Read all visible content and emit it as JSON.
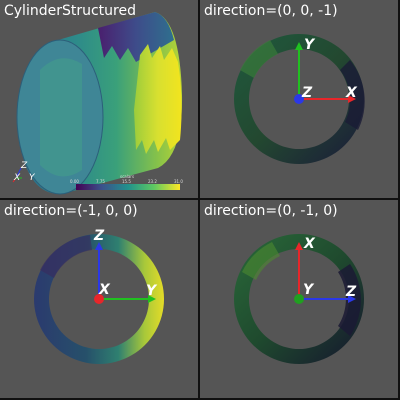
{
  "panes": [
    {
      "title": "CylinderStructured"
    },
    {
      "title": "direction=(0, 0, -1)",
      "axes": {
        "up": "Y",
        "right": "X",
        "center": "Z"
      }
    },
    {
      "title": "direction=(-1, 0, 0)",
      "axes": {
        "up": "Z",
        "right": "Y",
        "center": "X"
      }
    },
    {
      "title": "direction=(0, -1, 0)",
      "axes": {
        "up": "X",
        "right": "Z",
        "center": "Y"
      }
    }
  ],
  "orientation_widget": {
    "z": "Z",
    "x": "X",
    "y": "Y"
  },
  "scalar_bar": {
    "title": "scalars",
    "ticks": [
      "0.00",
      "7.75",
      "15.5",
      "23.2",
      "31.0"
    ]
  },
  "colors": {
    "background": "#555555",
    "axis_x": "#e8262a",
    "axis_y": "#20c020",
    "axis_z": "#2b38e8"
  }
}
